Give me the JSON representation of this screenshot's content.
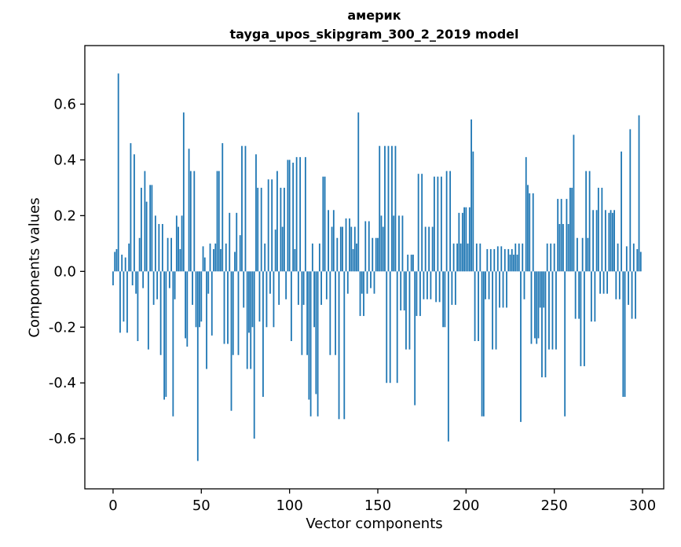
{
  "chart_data": {
    "type": "bar",
    "title": "америк",
    "subtitle": "tayga_upos_skipgram_300_2_2019 model",
    "xlabel": "Vector components",
    "ylabel": "Components values",
    "x_range": [
      0,
      299
    ],
    "values": [
      -0.05,
      0.07,
      0.08,
      0.71,
      -0.22,
      0.06,
      -0.18,
      0.05,
      -0.22,
      0.1,
      0.46,
      -0.05,
      0.42,
      -0.08,
      -0.25,
      0.12,
      0.3,
      -0.06,
      0.36,
      0.25,
      -0.28,
      0.31,
      0.31,
      -0.12,
      0.2,
      -0.1,
      0.17,
      -0.3,
      0.17,
      -0.46,
      -0.45,
      0.12,
      -0.06,
      0.12,
      -0.52,
      -0.1,
      0.2,
      0.16,
      0.08,
      0.2,
      0.57,
      -0.24,
      -0.27,
      0.44,
      0.36,
      -0.12,
      0.36,
      -0.2,
      -0.68,
      -0.2,
      -0.18,
      0.09,
      0.05,
      -0.35,
      -0.08,
      0.1,
      -0.23,
      0.08,
      0.1,
      0.36,
      0.36,
      0.08,
      0.46,
      -0.26,
      0.1,
      -0.26,
      0.21,
      -0.5,
      -0.3,
      0.07,
      0.21,
      -0.3,
      0.13,
      0.45,
      -0.13,
      0.45,
      -0.35,
      -0.22,
      -0.35,
      -0.2,
      -0.6,
      0.42,
      0.3,
      -0.18,
      0.3,
      -0.45,
      0.1,
      -0.2,
      0.33,
      -0.08,
      0.33,
      -0.2,
      0.15,
      0.36,
      -0.12,
      0.3,
      0.16,
      0.3,
      -0.1,
      0.4,
      0.4,
      -0.25,
      0.39,
      0.08,
      0.41,
      -0.12,
      0.41,
      -0.3,
      -0.12,
      0.41,
      -0.3,
      -0.46,
      -0.52,
      0.1,
      -0.2,
      -0.44,
      -0.52,
      0.1,
      -0.12,
      0.34,
      0.34,
      -0.1,
      0.22,
      -0.3,
      0.16,
      0.22,
      -0.3,
      0.12,
      -0.53,
      0.16,
      0.16,
      -0.53,
      0.19,
      -0.08,
      0.19,
      0.16,
      0.08,
      0.16,
      0.1,
      0.57,
      -0.16,
      -0.08,
      -0.16,
      0.18,
      -0.08,
      0.18,
      -0.06,
      0.12,
      -0.08,
      0.12,
      0.12,
      0.45,
      0.2,
      0.16,
      0.45,
      -0.4,
      0.45,
      -0.4,
      0.45,
      0.2,
      0.45,
      -0.4,
      0.2,
      -0.14,
      0.2,
      -0.14,
      -0.28,
      0.06,
      -0.28,
      0.06,
      0.06,
      -0.48,
      -0.16,
      0.35,
      -0.16,
      0.35,
      -0.1,
      0.16,
      -0.1,
      0.16,
      -0.1,
      0.16,
      0.34,
      -0.11,
      0.34,
      -0.11,
      0.34,
      -0.2,
      -0.2,
      0.36,
      -0.61,
      0.36,
      -0.12,
      0.1,
      -0.12,
      0.1,
      0.21,
      0.1,
      0.21,
      0.23,
      0.23,
      0.1,
      0.23,
      0.545,
      0.43,
      -0.25,
      0.1,
      -0.25,
      0.1,
      -0.52,
      -0.52,
      -0.1,
      0.08,
      -0.1,
      0.08,
      -0.28,
      0.08,
      -0.28,
      0.09,
      -0.13,
      0.09,
      -0.13,
      0.08,
      -0.13,
      0.08,
      0.06,
      0.08,
      0.06,
      0.1,
      0.06,
      0.1,
      -0.54,
      0.1,
      -0.1,
      0.41,
      0.31,
      0.28,
      -0.26,
      0.28,
      -0.24,
      -0.26,
      -0.24,
      -0.13,
      -0.38,
      -0.13,
      -0.38,
      0.1,
      -0.28,
      0.1,
      -0.28,
      0.1,
      -0.28,
      0.26,
      0.17,
      0.26,
      0.17,
      -0.52,
      0.26,
      0.17,
      0.3,
      0.3,
      0.49,
      -0.17,
      0.12,
      -0.17,
      -0.34,
      0.12,
      -0.34,
      0.36,
      0.12,
      0.36,
      -0.18,
      0.22,
      -0.18,
      0.22,
      0.3,
      -0.08,
      0.3,
      -0.08,
      0.22,
      -0.08,
      0.21,
      0.22,
      0.21,
      0.22,
      -0.1,
      0.1,
      -0.1,
      0.43,
      -0.45,
      -0.45,
      0.09,
      -0.12,
      0.51,
      -0.17,
      0.1,
      -0.17,
      0.08,
      0.56,
      0.07
    ],
    "xticks": [
      0,
      50,
      100,
      150,
      200,
      250,
      300
    ],
    "yticks": [
      -0.6,
      -0.4,
      -0.2,
      0.0,
      0.2,
      0.4,
      0.6
    ],
    "xlim": [
      -16,
      312
    ],
    "ylim": [
      -0.78,
      0.81
    ],
    "bar_color": "#1f77b4",
    "axis_color": "#000000",
    "grid": false,
    "legend": false
  }
}
